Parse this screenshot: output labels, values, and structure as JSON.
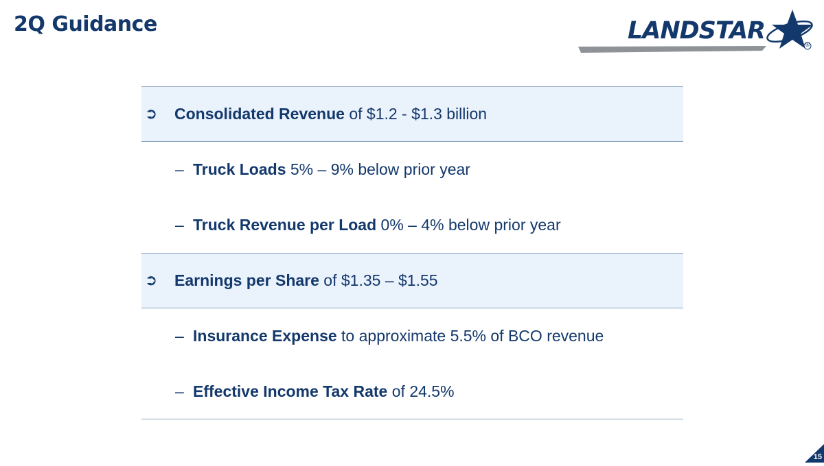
{
  "slide": {
    "title": "2Q Guidance",
    "page_number": "15"
  },
  "logo": {
    "text": "LANDSTAR",
    "registered_mark": "®",
    "icon": "star-logo-icon",
    "colors": {
      "primary": "#13386b",
      "swoosh": "#8f9398"
    }
  },
  "colors": {
    "accent_navy": "#13386b",
    "row_highlight": "#eaf2fc",
    "divider": "#8aa2bf"
  },
  "guidance": [
    {
      "level": "main",
      "bullet": "➲",
      "bold": "Consolidated Revenue",
      "rest": " of $1.2 - $1.3 billion"
    },
    {
      "level": "sub",
      "bullet": "–",
      "bold": "Truck Loads",
      "rest": " 5% – 9% below prior year"
    },
    {
      "level": "sub",
      "bullet": "–",
      "bold": "Truck Revenue per Load",
      "rest": " 0% – 4% below prior year"
    },
    {
      "level": "main",
      "bullet": "➲",
      "bold": "Earnings per Share",
      "rest": " of $1.35 – $1.55"
    },
    {
      "level": "sub",
      "bullet": "–",
      "bold": "Insurance Expense",
      "rest": " to approximate 5.5% of BCO revenue"
    },
    {
      "level": "sub",
      "bullet": "–",
      "bold": "Effective Income Tax Rate",
      "rest": " of 24.5%"
    }
  ]
}
